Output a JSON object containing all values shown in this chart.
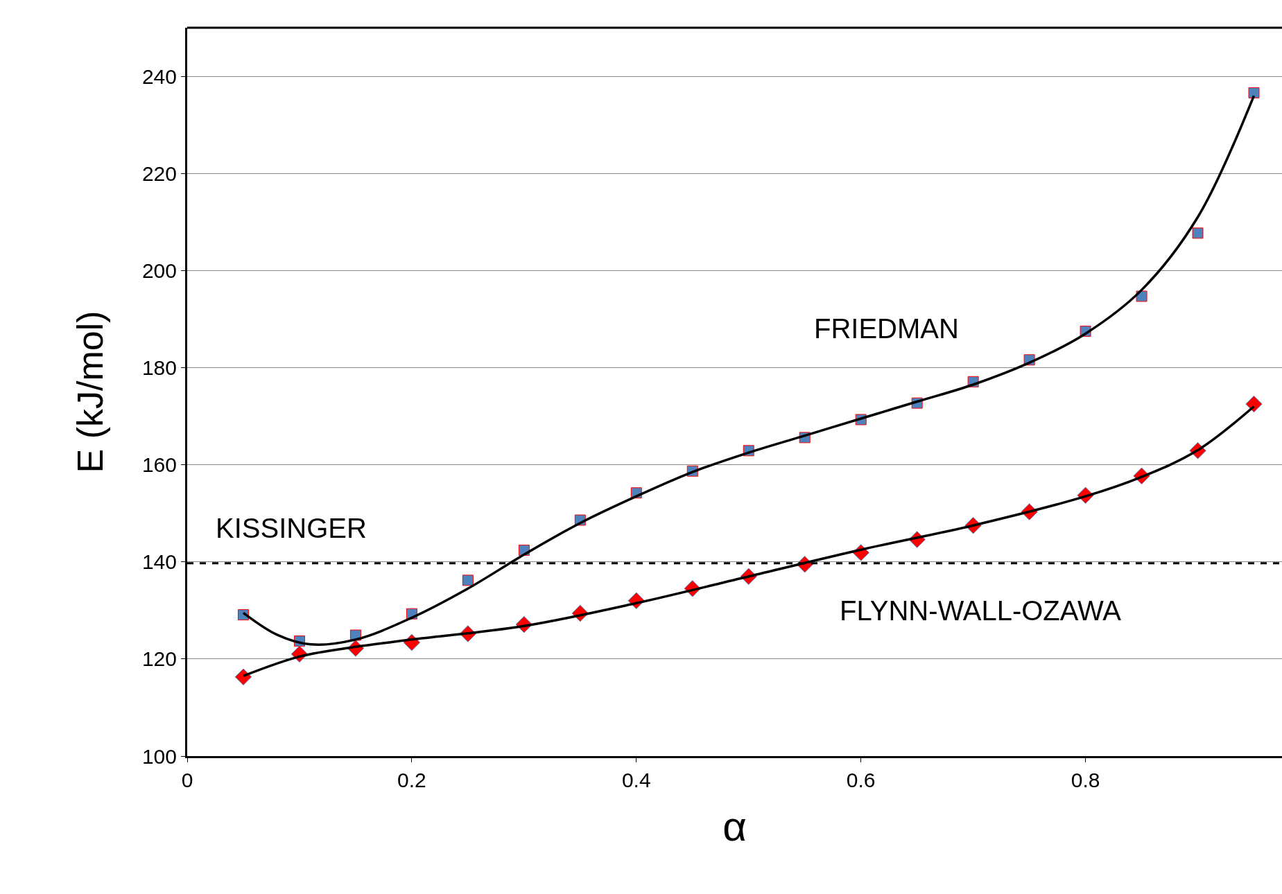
{
  "chart_data": {
    "type": "scatter",
    "xlabel": "α",
    "ylabel": "E (kJ/mol)",
    "xlim": [
      0,
      0.975
    ],
    "xticks": [
      0,
      0.2,
      0.4,
      0.6,
      0.8
    ],
    "ylim": [
      100,
      250
    ],
    "yticks": [
      100,
      120,
      140,
      160,
      180,
      200,
      220,
      240
    ],
    "grid": "y",
    "legend": false,
    "annotations": [
      "FRIEDMAN",
      "KISSINGER",
      "FLYNN-WALL-OZAWA"
    ],
    "ref_lines": [
      {
        "axis": "y",
        "value": 139.7,
        "color": "#000000",
        "line_style": "dashed"
      }
    ],
    "series": [
      {
        "marker": "square",
        "color": "#4f81bd",
        "x": [
          0.05,
          0.1,
          0.15,
          0.2,
          0.25,
          0.3,
          0.35,
          0.4,
          0.45,
          0.5,
          0.55,
          0.6,
          0.65,
          0.7,
          0.75,
          0.8,
          0.85,
          0.9,
          0.95
        ],
        "values": [
          129.1,
          123.7,
          124.9,
          129.3,
          136.2,
          142.4,
          148.6,
          154.2,
          158.7,
          162.9,
          165.6,
          169.3,
          172.7,
          177.1,
          181.6,
          187.5,
          194.7,
          207.7,
          236.6
        ]
      },
      {
        "marker": "diamond",
        "color": "#ff0000",
        "x": [
          0.05,
          0.1,
          0.15,
          0.2,
          0.25,
          0.3,
          0.35,
          0.4,
          0.45,
          0.5,
          0.55,
          0.6,
          0.65,
          0.7,
          0.75,
          0.8,
          0.85,
          0.9,
          0.95
        ],
        "values": [
          116.3,
          121.0,
          122.2,
          123.4,
          125.2,
          127.1,
          129.4,
          132.0,
          134.5,
          137.0,
          139.5,
          141.9,
          144.6,
          147.5,
          150.3,
          153.7,
          157.7,
          162.9,
          172.5
        ]
      },
      {
        "type": "line",
        "marker": "none",
        "color": "#000000",
        "x": [
          0.05,
          0.08,
          0.11,
          0.15,
          0.2,
          0.25,
          0.3,
          0.35,
          0.4,
          0.45,
          0.5,
          0.55,
          0.6,
          0.65,
          0.7,
          0.75,
          0.8,
          0.85,
          0.9,
          0.95
        ],
        "values": [
          129.5,
          125,
          123,
          124,
          128.5,
          134.5,
          141.5,
          148,
          153.5,
          158.5,
          162.5,
          166,
          169.5,
          173,
          176.5,
          181,
          187,
          196,
          211,
          236
        ]
      },
      {
        "type": "line",
        "marker": "none",
        "color": "#000000",
        "x": [
          0.05,
          0.1,
          0.15,
          0.2,
          0.3,
          0.4,
          0.5,
          0.6,
          0.7,
          0.8,
          0.85,
          0.9,
          0.95
        ],
        "values": [
          116.5,
          120.5,
          122.5,
          124,
          126.8,
          131.5,
          137,
          142.5,
          147.5,
          153.5,
          157.5,
          163,
          172
        ]
      }
    ]
  }
}
